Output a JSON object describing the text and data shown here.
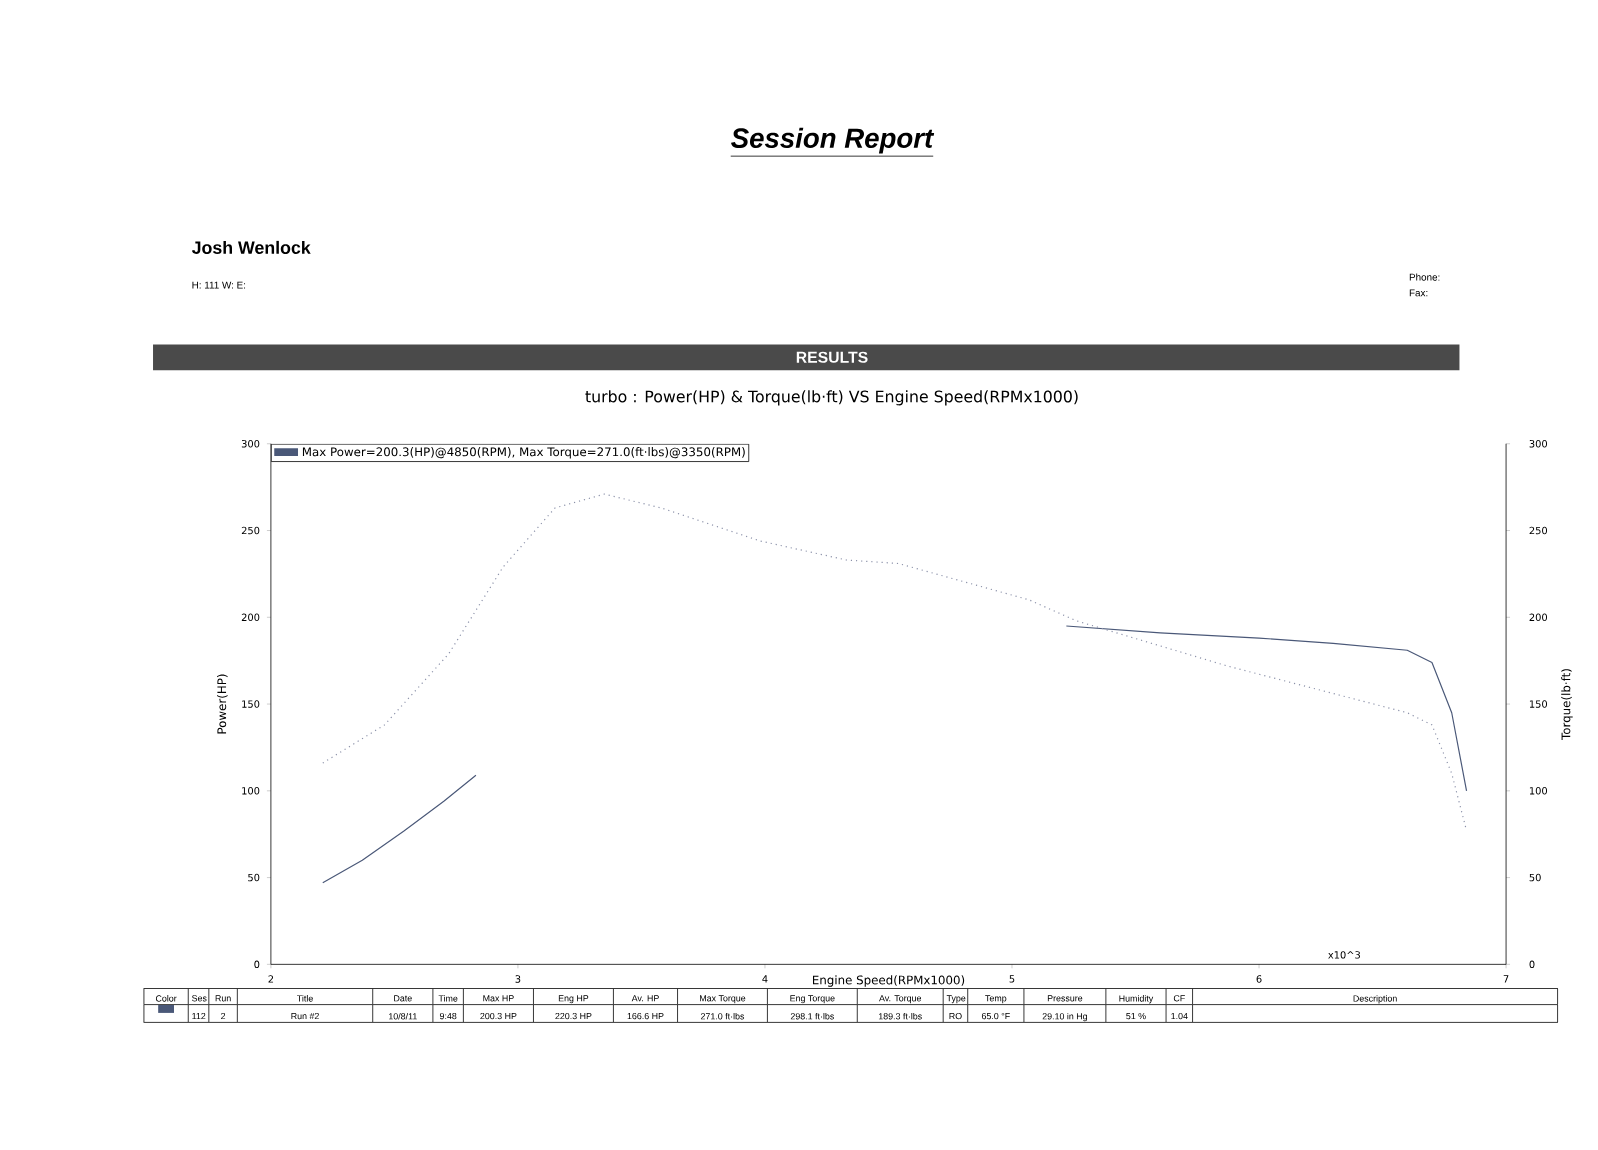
{
  "chart_data": {
    "type": "line",
    "title": "turbo : Power(HP) & Torque(lb·ft) VS Engine Speed(RPMx1000)",
    "xlabel": "Engine Speed(RPMx1000)",
    "ylabel": "Power(HP)",
    "y2label": "Torque(lb·ft)",
    "xlim": [
      2,
      7
    ],
    "xticks": [
      2,
      3,
      4,
      5,
      6,
      7
    ],
    "ylim": [
      0,
      300
    ],
    "yticks": [
      0,
      50,
      100,
      150,
      200,
      250,
      300
    ],
    "y2lim": [
      0,
      300
    ],
    "y2ticks": [
      0,
      50,
      100,
      150,
      200,
      250,
      300
    ],
    "grid": false,
    "series": [
      {
        "color": "#4a5878",
        "line_style": "solid",
        "x": [
          2.21,
          2.37,
          2.54,
          2.7,
          2.83,
          3.0,
          5.22,
          5.6,
          6.0,
          6.3,
          6.6,
          6.7,
          6.78,
          6.84
        ],
        "values": [
          47,
          60,
          77,
          94,
          109,
          null,
          195,
          191,
          188,
          185,
          181,
          174,
          145,
          100
        ]
      },
      {
        "color": "#8a90a8",
        "line_style": "dotted",
        "axis": "y2",
        "x": [
          2.21,
          2.46,
          2.72,
          2.94,
          3.15,
          3.35,
          3.58,
          3.98,
          4.33,
          4.54,
          5.07,
          5.26,
          5.87,
          6.6,
          6.7,
          6.78,
          6.84
        ],
        "values": [
          116,
          138,
          179,
          229,
          263,
          271,
          263,
          244,
          233,
          231,
          210,
          198,
          172,
          145,
          138,
          110,
          77
        ]
      }
    ],
    "annotations": [
      "Session Report",
      "Josh Wenlock",
      "H:  111   W:       E:",
      "Phone:",
      "Fax:",
      "RESULTS",
      "Max Power=200.3(HP)@4850(RPM), Max Torque=271.0(ft·lbs)@3350(RPM)",
      "x10^3",
      "Color",
      "Ses",
      "Run",
      "Title",
      "Date",
      "Time",
      "Max HP",
      "Eng HP",
      "Av. HP",
      "Max Torque",
      "Eng Torque",
      "Av. Torque",
      "Type",
      "Temp",
      "Pressure",
      "Humidity",
      "CF",
      "Description",
      "112",
      "2",
      "Run #2",
      "10/8/11",
      "9:48",
      "200.3 HP",
      "220.3 HP",
      "166.6 HP",
      "271.0 ft·lbs",
      "298.1 ft·lbs",
      "189.3 ft·lbs",
      "RO",
      "65.0 °F",
      "29.10 in Hg",
      "51 %",
      "1.04"
    ]
  }
}
